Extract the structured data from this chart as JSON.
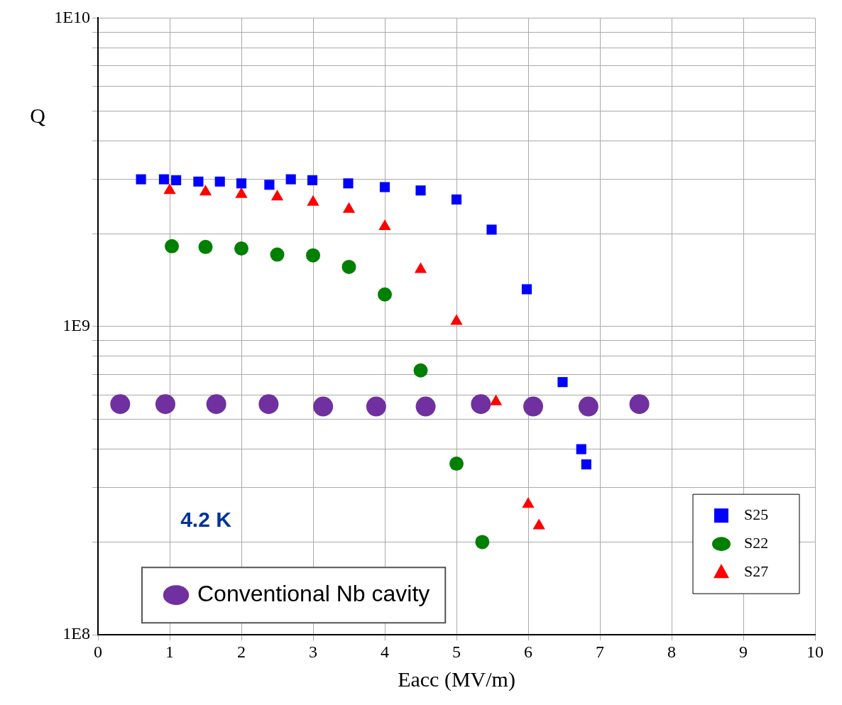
{
  "chart_data": {
    "type": "scatter",
    "xlabel": "Eacc (MV/m)",
    "ylabel": "Q",
    "log": "y",
    "grid": true,
    "legend": "bottom right",
    "xlim": [
      0,
      10
    ],
    "xticks": [
      0,
      1,
      2,
      3,
      4,
      5,
      6,
      7,
      8,
      9,
      10
    ],
    "ylim": [
      100000000,
      10000000000
    ],
    "yticks": [
      {
        "value": 100000000,
        "label": "1E8"
      },
      {
        "value": 200000000,
        "label": null
      },
      {
        "value": 300000000,
        "label": null
      },
      {
        "value": 400000000,
        "label": null
      },
      {
        "value": 500000000,
        "label": null
      },
      {
        "value": 600000000,
        "label": null
      },
      {
        "value": 700000000,
        "label": null
      },
      {
        "value": 800000000,
        "label": null
      },
      {
        "value": 900000000,
        "label": null
      },
      {
        "value": 1000000000,
        "label": "1E9"
      },
      {
        "value": 2000000000,
        "label": null
      },
      {
        "value": 3000000000,
        "label": null
      },
      {
        "value": 4000000000,
        "label": null
      },
      {
        "value": 5000000000,
        "label": null
      },
      {
        "value": 6000000000,
        "label": null
      },
      {
        "value": 7000000000,
        "label": null
      },
      {
        "value": 8000000000,
        "label": null
      },
      {
        "value": 9000000000,
        "label": null
      },
      {
        "value": 10000000000,
        "label": "1E10"
      }
    ],
    "annotations": [
      "4.2 K"
    ],
    "series": [
      {
        "name": "S25",
        "color": "#0000ff",
        "marker": "square",
        "x": [
          0.6,
          0.92,
          1.09,
          1.4,
          1.7,
          2.0,
          2.39,
          2.69,
          2.99,
          3.49,
          4.0,
          4.5,
          5.0,
          5.49,
          5.98,
          6.48,
          6.74,
          6.81
        ],
        "values": [
          3000000000.0,
          3000000000.0,
          2980000000.0,
          2950000000.0,
          2950000000.0,
          2910000000.0,
          2880000000.0,
          3000000000.0,
          2980000000.0,
          2910000000.0,
          2830000000.0,
          2760000000.0,
          2580000000.0,
          2060000000.0,
          1320000000.0,
          660000000.0,
          400000000.0,
          357000000.0
        ]
      },
      {
        "name": "S22",
        "color": "#008000",
        "marker": "circle",
        "x": [
          1.03,
          1.5,
          2.0,
          2.5,
          3.0,
          3.5,
          4.0,
          4.5,
          5.0,
          5.36
        ],
        "values": [
          1820000000.0,
          1810000000.0,
          1790000000.0,
          1710000000.0,
          1700000000.0,
          1560000000.0,
          1270000000.0,
          720000000.0,
          359000000.0,
          200000000.0
        ]
      },
      {
        "name": "S27",
        "color": "#ff0000",
        "marker": "triangle",
        "x": [
          1.0,
          1.5,
          2.0,
          2.5,
          3.0,
          3.5,
          4.0,
          4.5,
          5.0,
          5.55,
          6.0,
          6.15
        ],
        "values": [
          2760000000.0,
          2730000000.0,
          2680000000.0,
          2630000000.0,
          2530000000.0,
          2400000000.0,
          2110000000.0,
          1530000000.0,
          1040000000.0,
          570000000.0,
          265000000.0,
          226000000.0
        ]
      },
      {
        "name": "Conventional Nb cavity",
        "color": "#7030a0",
        "marker": "circle",
        "x": [
          0.31,
          0.94,
          1.65,
          2.38,
          3.14,
          3.88,
          4.57,
          5.34,
          6.07,
          6.84,
          7.55
        ],
        "values": [
          560000000.0,
          560000000.0,
          560000000.0,
          560000000.0,
          550000000.0,
          550000000.0,
          550000000.0,
          560000000.0,
          550000000.0,
          550000000.0,
          560000000.0
        ]
      }
    ]
  }
}
